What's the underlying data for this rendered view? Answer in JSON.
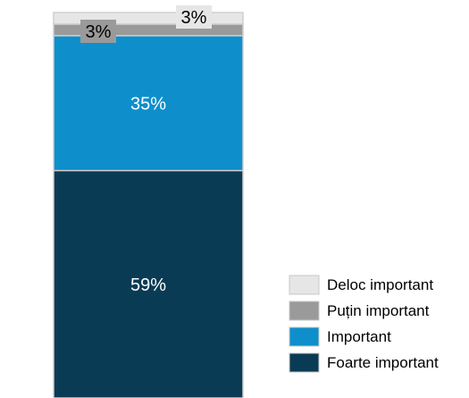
{
  "chart_data": {
    "type": "bar",
    "stacked": true,
    "categories": [
      ""
    ],
    "series": [
      {
        "name": "Foarte important",
        "values": [
          59
        ],
        "label": "59%",
        "color": "#0a3b55",
        "label_color": "#ffffff"
      },
      {
        "name": "Important",
        "values": [
          35
        ],
        "label": "35%",
        "color": "#0e8fcc",
        "label_color": "#ffffff"
      },
      {
        "name": "Puțin important",
        "values": [
          3
        ],
        "label": "3%",
        "color": "#9a9a9a",
        "label_color": "#000000"
      },
      {
        "name": "Deloc important",
        "values": [
          3
        ],
        "label": "3%",
        "color": "#e6e6e6",
        "label_color": "#000000"
      }
    ],
    "legend": {
      "position": "bottom-right",
      "items": [
        "Deloc important",
        "Puțin important",
        "Important",
        "Foarte important"
      ]
    },
    "grid": false,
    "axes_visible": false
  }
}
